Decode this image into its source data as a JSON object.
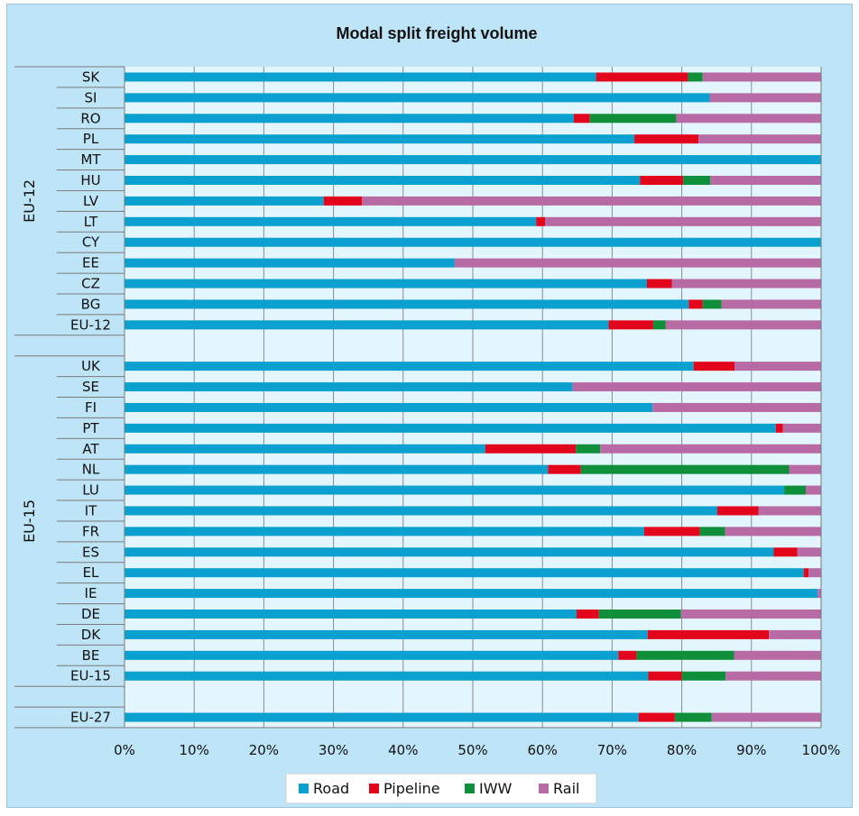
{
  "chart_data": {
    "type": "bar",
    "orientation": "horizontal",
    "stacked": true,
    "title": "Modal split freight volume",
    "xlabel": "",
    "ylabel": "",
    "xlim": [
      0,
      100
    ],
    "x_ticks": [
      "0%",
      "10%",
      "20%",
      "30%",
      "40%",
      "50%",
      "60%",
      "70%",
      "80%",
      "90%",
      "100%"
    ],
    "grid": true,
    "legend_position": "bottom",
    "series": [
      {
        "name": "Road",
        "color": "#0aa0cf"
      },
      {
        "name": "Pipeline",
        "color": "#e3051b"
      },
      {
        "name": "IWW",
        "color": "#0f8f3a"
      },
      {
        "name": "Rail",
        "color": "#b86aa5"
      }
    ],
    "groups": [
      {
        "name": "EU-12",
        "categories": [
          {
            "label": "SK",
            "values": [
              67.7,
              13.2,
              2.1,
              17.0
            ]
          },
          {
            "label": "SI",
            "values": [
              84.0,
              0,
              0,
              16.0
            ]
          },
          {
            "label": "RO",
            "values": [
              64.5,
              2.3,
              12.4,
              20.8
            ]
          },
          {
            "label": "PL",
            "values": [
              73.2,
              9.2,
              0,
              17.6
            ]
          },
          {
            "label": "MT",
            "values": [
              100,
              0,
              0,
              0
            ]
          },
          {
            "label": "HU",
            "values": [
              74.0,
              6.2,
              3.9,
              15.9
            ]
          },
          {
            "label": "LV",
            "values": [
              28.6,
              5.5,
              0,
              65.9
            ]
          },
          {
            "label": "LT",
            "values": [
              59.1,
              1.3,
              0,
              39.6
            ]
          },
          {
            "label": "CY",
            "values": [
              100,
              0,
              0,
              0
            ]
          },
          {
            "label": "EE",
            "values": [
              47.4,
              0,
              0,
              52.6
            ]
          },
          {
            "label": "CZ",
            "values": [
              75.0,
              3.6,
              0,
              21.4
            ]
          },
          {
            "label": "BG",
            "values": [
              81.0,
              2.0,
              2.7,
              14.3
            ]
          },
          {
            "label": "EU-12",
            "values": [
              69.5,
              6.4,
              1.8,
              22.3
            ]
          }
        ]
      },
      {
        "name": "EU-15",
        "categories": [
          {
            "label": "UK",
            "values": [
              81.7,
              5.9,
              0,
              12.4
            ]
          },
          {
            "label": "SE",
            "values": [
              64.3,
              0,
              0,
              35.7
            ]
          },
          {
            "label": "FI",
            "values": [
              75.8,
              0,
              0,
              24.2
            ]
          },
          {
            "label": "PT",
            "values": [
              93.5,
              1.0,
              0,
              5.5
            ]
          },
          {
            "label": "AT",
            "values": [
              51.8,
              13.0,
              3.5,
              31.7
            ]
          },
          {
            "label": "NL",
            "values": [
              60.8,
              4.7,
              29.9,
              4.6
            ]
          },
          {
            "label": "LU",
            "values": [
              94.7,
              0,
              3.1,
              2.2
            ]
          },
          {
            "label": "IT",
            "values": [
              85.1,
              5.9,
              0,
              9.0
            ]
          },
          {
            "label": "FR",
            "values": [
              74.6,
              8.0,
              3.6,
              13.8
            ]
          },
          {
            "label": "ES",
            "values": [
              93.2,
              3.4,
              0,
              3.4
            ]
          },
          {
            "label": "EL",
            "values": [
              97.5,
              0.7,
              0,
              1.8
            ]
          },
          {
            "label": "IE",
            "values": [
              99.5,
              0,
              0,
              0.5
            ]
          },
          {
            "label": "DE",
            "values": [
              64.9,
              3.2,
              11.8,
              20.1
            ]
          },
          {
            "label": "DK",
            "values": [
              75.1,
              17.4,
              0,
              7.5
            ]
          },
          {
            "label": "BE",
            "values": [
              70.9,
              2.6,
              14.0,
              12.5
            ]
          },
          {
            "label": "EU-15",
            "values": [
              75.2,
              4.8,
              6.3,
              13.7
            ]
          }
        ]
      },
      {
        "name": "",
        "categories": [
          {
            "label": "EU-27",
            "values": [
              73.8,
              5.2,
              5.3,
              15.7
            ]
          }
        ]
      }
    ]
  }
}
